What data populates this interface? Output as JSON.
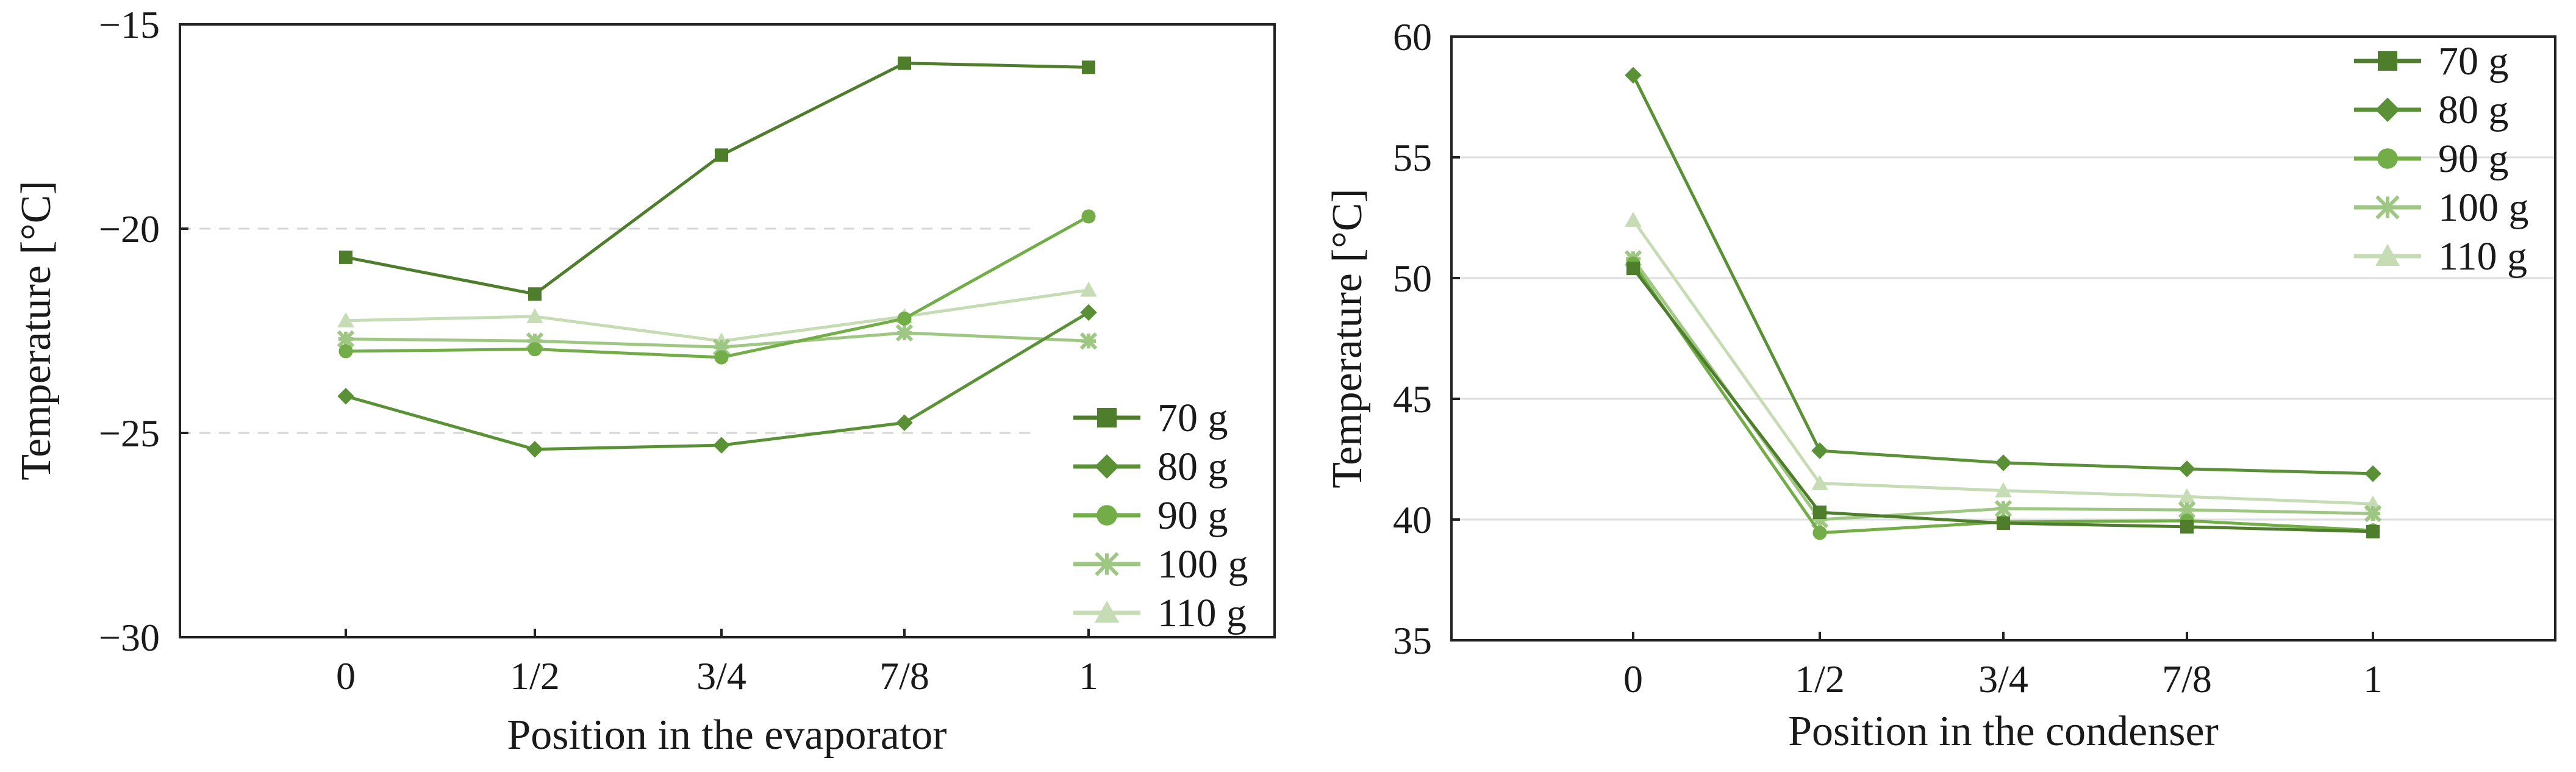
{
  "chart_data": [
    {
      "type": "line",
      "xlabel": "Position in the evaporator",
      "ylabel": "Temperature [°C]",
      "ylim": [
        -30,
        -15
      ],
      "yticks": [
        -30,
        -25,
        -20,
        -15
      ],
      "ytick_labels": [
        "−30",
        "−25",
        "−20",
        "−15"
      ],
      "categories": [
        "0",
        "1/2",
        "3/4",
        "7/8",
        "1"
      ],
      "grid": "dashed at -20 and -25",
      "legend_position": "lower-right",
      "series": [
        {
          "name": "70 g",
          "marker": "square",
          "color": "#4e7d2c",
          "values": [
            -20.7,
            -21.6,
            -18.2,
            -15.95,
            -16.05
          ]
        },
        {
          "name": "80 g",
          "marker": "diamond",
          "color": "#5a9136",
          "values": [
            -24.1,
            -25.4,
            -25.3,
            -24.75,
            -22.05
          ]
        },
        {
          "name": "90 g",
          "marker": "circle",
          "color": "#72ad48",
          "values": [
            -23.0,
            -22.95,
            -23.15,
            -22.2,
            -19.7
          ]
        },
        {
          "name": "100 g",
          "marker": "asterisk",
          "color": "#9fc784",
          "values": [
            -22.7,
            -22.75,
            -22.9,
            -22.55,
            -22.75
          ]
        },
        {
          "name": "110 g",
          "marker": "triangle",
          "color": "#c5dcb4",
          "values": [
            -22.25,
            -22.15,
            -22.75,
            -22.15,
            -21.5
          ]
        }
      ]
    },
    {
      "type": "line",
      "xlabel": "Position in the condenser",
      "ylabel": "Temperature [°C]",
      "ylim": [
        35,
        60
      ],
      "yticks": [
        35,
        40,
        45,
        50,
        55,
        60
      ],
      "ytick_labels": [
        "35",
        "40",
        "45",
        "50",
        "55",
        "60"
      ],
      "categories": [
        "0",
        "1/2",
        "3/4",
        "7/8",
        "1"
      ],
      "grid": "solid at 40, 45, 50, 55",
      "legend_position": "top-right",
      "series": [
        {
          "name": "70 g",
          "marker": "square",
          "color": "#4e7d2c",
          "values": [
            50.4,
            40.3,
            39.85,
            39.7,
            39.5
          ]
        },
        {
          "name": "80 g",
          "marker": "diamond",
          "color": "#5a9136",
          "values": [
            58.4,
            42.85,
            42.35,
            42.1,
            41.9
          ]
        },
        {
          "name": "90 g",
          "marker": "circle",
          "color": "#72ad48",
          "values": [
            50.6,
            39.45,
            39.9,
            39.95,
            39.55
          ]
        },
        {
          "name": "100 g",
          "marker": "asterisk",
          "color": "#9fc784",
          "values": [
            50.8,
            40.0,
            40.45,
            40.4,
            40.25
          ]
        },
        {
          "name": "110 g",
          "marker": "triangle",
          "color": "#c5dcb4",
          "values": [
            52.4,
            41.5,
            41.2,
            40.95,
            40.65
          ]
        }
      ]
    }
  ]
}
